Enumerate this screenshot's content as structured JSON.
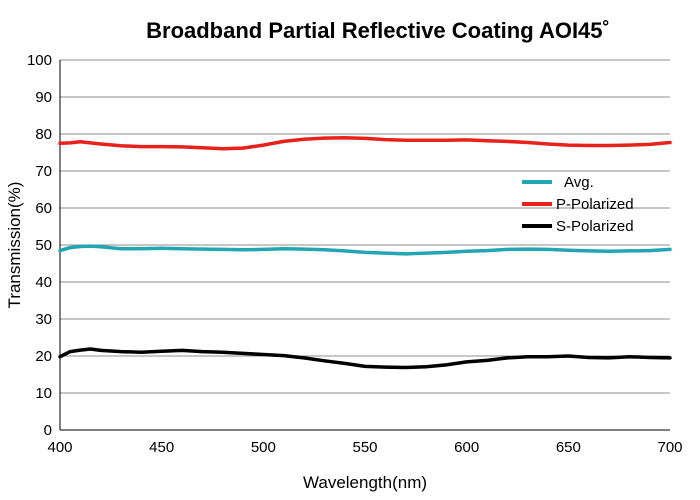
{
  "chart_data": {
    "type": "line",
    "title": "Broadband Partial Reflective Coating AOI45˚",
    "xlabel": "Wavelength(nm)",
    "ylabel": "Transmission(%)",
    "xlim": [
      400,
      700
    ],
    "ylim": [
      0,
      100
    ],
    "x_ticks": [
      400,
      450,
      500,
      550,
      600,
      650,
      700
    ],
    "y_ticks": [
      0,
      10,
      20,
      30,
      40,
      50,
      60,
      70,
      80,
      90,
      100
    ],
    "grid": true,
    "legend_position": "right",
    "series": [
      {
        "name": "Avg.",
        "color": "#22a6b3",
        "x": [
          400,
          405,
          410,
          415,
          420,
          430,
          440,
          450,
          460,
          470,
          480,
          490,
          500,
          510,
          520,
          530,
          540,
          550,
          560,
          570,
          580,
          590,
          600,
          610,
          620,
          630,
          640,
          650,
          660,
          670,
          680,
          690,
          700
        ],
        "y": [
          48.5,
          49.3,
          49.6,
          49.7,
          49.5,
          49.0,
          49.0,
          49.1,
          49.0,
          48.9,
          48.8,
          48.7,
          48.8,
          49.0,
          48.9,
          48.7,
          48.4,
          48.0,
          47.8,
          47.6,
          47.8,
          48.0,
          48.3,
          48.5,
          48.8,
          48.9,
          48.8,
          48.6,
          48.4,
          48.3,
          48.4,
          48.5,
          48.8
        ]
      },
      {
        "name": "P-Polarized",
        "color": "#e8211b",
        "x": [
          400,
          405,
          410,
          415,
          420,
          430,
          440,
          450,
          460,
          470,
          480,
          490,
          500,
          510,
          520,
          530,
          540,
          550,
          560,
          570,
          580,
          590,
          600,
          610,
          620,
          630,
          640,
          650,
          660,
          670,
          680,
          690,
          700
        ],
        "y": [
          77.5,
          77.6,
          77.9,
          77.6,
          77.3,
          76.8,
          76.6,
          76.6,
          76.5,
          76.3,
          76.0,
          76.2,
          77.0,
          78.0,
          78.6,
          78.9,
          79.0,
          78.8,
          78.5,
          78.3,
          78.3,
          78.3,
          78.4,
          78.2,
          78.0,
          77.7,
          77.3,
          77.0,
          76.9,
          76.9,
          77.0,
          77.2,
          77.7
        ]
      },
      {
        "name": "S-Polarized",
        "color": "#000000",
        "x": [
          400,
          405,
          410,
          415,
          420,
          430,
          440,
          450,
          460,
          470,
          480,
          490,
          500,
          510,
          520,
          530,
          540,
          550,
          560,
          570,
          580,
          590,
          600,
          610,
          620,
          630,
          640,
          650,
          660,
          670,
          680,
          690,
          700
        ],
        "y": [
          19.8,
          21.2,
          21.6,
          21.9,
          21.5,
          21.2,
          21.0,
          21.3,
          21.5,
          21.2,
          21.0,
          20.7,
          20.4,
          20.1,
          19.5,
          18.7,
          18.0,
          17.2,
          17.0,
          16.9,
          17.1,
          17.6,
          18.4,
          18.8,
          19.5,
          19.8,
          19.8,
          20.0,
          19.6,
          19.5,
          19.8,
          19.6,
          19.5
        ]
      }
    ]
  }
}
